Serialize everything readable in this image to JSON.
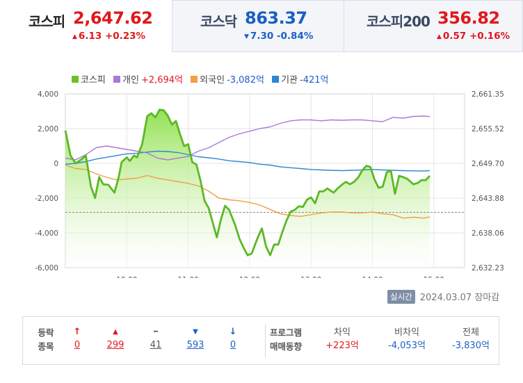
{
  "indices": [
    {
      "name": "코스피",
      "value": "2,647.62",
      "change": "6.13",
      "rate": "+0.23%",
      "direction": "up",
      "arrow": "▲"
    },
    {
      "name": "코스닥",
      "value": "863.37",
      "change": "7.30",
      "rate": "-0.84%",
      "direction": "down",
      "arrow": "▼"
    },
    {
      "name": "코스피200",
      "value": "356.82",
      "change": "0.57",
      "rate": "+0.16%",
      "direction": "up",
      "arrow": "▲"
    }
  ],
  "legend": [
    {
      "name": "코스피",
      "value": "",
      "color": "#6cc12a"
    },
    {
      "name": "개인",
      "value": "+2,694억",
      "color": "#a77ad6"
    },
    {
      "name": "외국인",
      "value": "-3,082억",
      "color": "#f0a040"
    },
    {
      "name": "기관",
      "value": "-421억",
      "color": "#2f86d4"
    }
  ],
  "chart_data": {
    "type": "line",
    "left_axis": {
      "ticks": [
        "4,000",
        "2,000",
        "0",
        "-2,000",
        "-4,000",
        "-6,000"
      ],
      "range": [
        -6000,
        4000
      ]
    },
    "right_axis": {
      "ticks": [
        "2,661.35",
        "2,655.52",
        "2,649.70",
        "2,643.88",
        "2,638.06",
        "2,632.23"
      ],
      "range": [
        2632.23,
        2661.35
      ]
    },
    "x_ticks": [
      {
        "label": "10:00",
        "t": 60
      },
      {
        "label": "11:00",
        "t": 120
      },
      {
        "label": "12:00",
        "t": 180
      },
      {
        "label": "13:00",
        "t": 240
      },
      {
        "label": "14:00",
        "t": 300
      },
      {
        "label": "15:00",
        "t": 360
      }
    ],
    "x_range_minutes": [
      0,
      390
    ],
    "time_origin": "09:00",
    "baseline_close_prev": 2641.49,
    "series": [
      {
        "name": "코스피",
        "axis": "right",
        "color": "#5cb824",
        "fill": true,
        "points": [
          [
            0,
            2655.2
          ],
          [
            5,
            2651.0
          ],
          [
            10,
            2649.7
          ],
          [
            15,
            2650.3
          ],
          [
            20,
            2651.0
          ],
          [
            25,
            2645.8
          ],
          [
            29,
            2643.9
          ],
          [
            33,
            2647.4
          ],
          [
            37,
            2646.2
          ],
          [
            42,
            2646.1
          ],
          [
            48,
            2644.8
          ],
          [
            52,
            2647.3
          ],
          [
            55,
            2649.9
          ],
          [
            60,
            2650.7
          ],
          [
            63,
            2650.1
          ],
          [
            67,
            2651.0
          ],
          [
            70,
            2650.7
          ],
          [
            75,
            2652.9
          ],
          [
            80,
            2657.6
          ],
          [
            84,
            2658.1
          ],
          [
            88,
            2657.4
          ],
          [
            92,
            2658.7
          ],
          [
            96,
            2658.6
          ],
          [
            100,
            2657.7
          ],
          [
            104,
            2656.2
          ],
          [
            108,
            2656.8
          ],
          [
            112,
            2654.6
          ],
          [
            116,
            2652.6
          ],
          [
            120,
            2652.9
          ],
          [
            124,
            2649.9
          ],
          [
            128,
            2649.5
          ],
          [
            132,
            2646.8
          ],
          [
            136,
            2643.4
          ],
          [
            140,
            2642.2
          ],
          [
            148,
            2637.3
          ],
          [
            152,
            2640.3
          ],
          [
            156,
            2642.6
          ],
          [
            160,
            2641.9
          ],
          [
            166,
            2639.3
          ],
          [
            170,
            2637.1
          ],
          [
            174,
            2635.6
          ],
          [
            178,
            2634.3
          ],
          [
            182,
            2634.6
          ],
          [
            188,
            2637.3
          ],
          [
            192,
            2638.8
          ],
          [
            196,
            2635.8
          ],
          [
            200,
            2634.3
          ],
          [
            204,
            2636.1
          ],
          [
            208,
            2636.1
          ],
          [
            212,
            2638.2
          ],
          [
            216,
            2640.1
          ],
          [
            220,
            2641.6
          ],
          [
            224,
            2641.9
          ],
          [
            228,
            2642.5
          ],
          [
            232,
            2642.4
          ],
          [
            236,
            2643.6
          ],
          [
            240,
            2644.0
          ],
          [
            244,
            2643.0
          ],
          [
            248,
            2645.0
          ],
          [
            252,
            2645.0
          ],
          [
            256,
            2645.5
          ],
          [
            262,
            2644.8
          ],
          [
            266,
            2645.5
          ],
          [
            270,
            2646.1
          ],
          [
            274,
            2646.6
          ],
          [
            278,
            2646.2
          ],
          [
            282,
            2646.6
          ],
          [
            286,
            2647.3
          ],
          [
            290,
            2648.5
          ],
          [
            294,
            2649.3
          ],
          [
            298,
            2649.1
          ],
          [
            302,
            2647.0
          ],
          [
            306,
            2645.6
          ],
          [
            310,
            2645.8
          ],
          [
            314,
            2648.2
          ],
          [
            318,
            2648.5
          ],
          [
            322,
            2644.6
          ],
          [
            326,
            2647.6
          ],
          [
            330,
            2647.4
          ],
          [
            334,
            2647.1
          ],
          [
            340,
            2646.2
          ],
          [
            344,
            2646.4
          ],
          [
            348,
            2646.9
          ],
          [
            352,
            2646.9
          ],
          [
            356,
            2647.6
          ]
        ]
      },
      {
        "name": "개인",
        "axis": "left",
        "color": "#a77ad6",
        "fill": false,
        "points": [
          [
            0,
            300
          ],
          [
            10,
            200
          ],
          [
            20,
            500
          ],
          [
            30,
            900
          ],
          [
            40,
            1000
          ],
          [
            50,
            900
          ],
          [
            60,
            800
          ],
          [
            70,
            700
          ],
          [
            80,
            600
          ],
          [
            90,
            300
          ],
          [
            100,
            200
          ],
          [
            110,
            300
          ],
          [
            120,
            400
          ],
          [
            130,
            700
          ],
          [
            140,
            900
          ],
          [
            150,
            1200
          ],
          [
            160,
            1500
          ],
          [
            170,
            1700
          ],
          [
            180,
            1850
          ],
          [
            190,
            2000
          ],
          [
            200,
            2100
          ],
          [
            210,
            2300
          ],
          [
            220,
            2450
          ],
          [
            230,
            2500
          ],
          [
            240,
            2500
          ],
          [
            250,
            2450
          ],
          [
            260,
            2500
          ],
          [
            270,
            2480
          ],
          [
            280,
            2500
          ],
          [
            290,
            2500
          ],
          [
            300,
            2450
          ],
          [
            310,
            2400
          ],
          [
            320,
            2650
          ],
          [
            330,
            2600
          ],
          [
            340,
            2700
          ],
          [
            350,
            2720
          ],
          [
            356,
            2694
          ]
        ]
      },
      {
        "name": "외국인",
        "axis": "left",
        "color": "#f0a040",
        "fill": false,
        "points": [
          [
            0,
            -100
          ],
          [
            10,
            -300
          ],
          [
            20,
            -350
          ],
          [
            30,
            -600
          ],
          [
            40,
            -800
          ],
          [
            50,
            -950
          ],
          [
            60,
            -900
          ],
          [
            70,
            -850
          ],
          [
            80,
            -700
          ],
          [
            90,
            -850
          ],
          [
            100,
            -950
          ],
          [
            110,
            -1050
          ],
          [
            120,
            -1150
          ],
          [
            130,
            -1300
          ],
          [
            140,
            -1600
          ],
          [
            150,
            -2000
          ],
          [
            160,
            -2100
          ],
          [
            170,
            -2150
          ],
          [
            180,
            -2250
          ],
          [
            190,
            -2400
          ],
          [
            200,
            -2650
          ],
          [
            210,
            -2900
          ],
          [
            220,
            -3000
          ],
          [
            230,
            -3050
          ],
          [
            240,
            -2950
          ],
          [
            250,
            -2850
          ],
          [
            260,
            -2800
          ],
          [
            270,
            -2800
          ],
          [
            280,
            -2850
          ],
          [
            290,
            -2850
          ],
          [
            300,
            -2800
          ],
          [
            310,
            -2900
          ],
          [
            320,
            -2950
          ],
          [
            330,
            -3150
          ],
          [
            340,
            -3100
          ],
          [
            350,
            -3150
          ],
          [
            356,
            -3082
          ]
        ]
      },
      {
        "name": "기관",
        "axis": "left",
        "color": "#2f86d4",
        "fill": false,
        "points": [
          [
            0,
            -50
          ],
          [
            10,
            0
          ],
          [
            20,
            100
          ],
          [
            30,
            250
          ],
          [
            40,
            350
          ],
          [
            50,
            450
          ],
          [
            60,
            550
          ],
          [
            70,
            580
          ],
          [
            80,
            650
          ],
          [
            90,
            700
          ],
          [
            100,
            680
          ],
          [
            110,
            620
          ],
          [
            120,
            500
          ],
          [
            130,
            380
          ],
          [
            140,
            320
          ],
          [
            150,
            250
          ],
          [
            160,
            150
          ],
          [
            170,
            100
          ],
          [
            180,
            50
          ],
          [
            190,
            -50
          ],
          [
            200,
            -100
          ],
          [
            210,
            -200
          ],
          [
            220,
            -250
          ],
          [
            230,
            -300
          ],
          [
            240,
            -350
          ],
          [
            250,
            -380
          ],
          [
            260,
            -400
          ],
          [
            270,
            -420
          ],
          [
            280,
            -400
          ],
          [
            290,
            -380
          ],
          [
            300,
            -350
          ],
          [
            310,
            -380
          ],
          [
            320,
            -400
          ],
          [
            330,
            -420
          ],
          [
            340,
            -430
          ],
          [
            350,
            -440
          ],
          [
            356,
            -421
          ]
        ]
      }
    ]
  },
  "status": {
    "badge": "실시간",
    "date": "2024.03.07",
    "session": "장마감"
  },
  "breadth": {
    "title_line1": "등락",
    "title_line2": "종목",
    "items": [
      {
        "icon": "↑",
        "count": "0",
        "color": "#e0181d"
      },
      {
        "icon": "▲",
        "count": "299",
        "color": "#e0181d"
      },
      {
        "icon": "━",
        "count": "41",
        "color": "#555555"
      },
      {
        "icon": "▼",
        "count": "593",
        "color": "#1b5fc5"
      },
      {
        "icon": "↓",
        "count": "0",
        "color": "#1b5fc5"
      }
    ]
  },
  "program": {
    "title_line1": "프로그램",
    "title_line2": "매매동향",
    "items": [
      {
        "label": "차익",
        "value": "+223억",
        "color": "#e0181d"
      },
      {
        "label": "비차익",
        "value": "-4,053억",
        "color": "#1b5fc5"
      },
      {
        "label": "전체",
        "value": "-3,830억",
        "color": "#1b5fc5"
      }
    ]
  }
}
